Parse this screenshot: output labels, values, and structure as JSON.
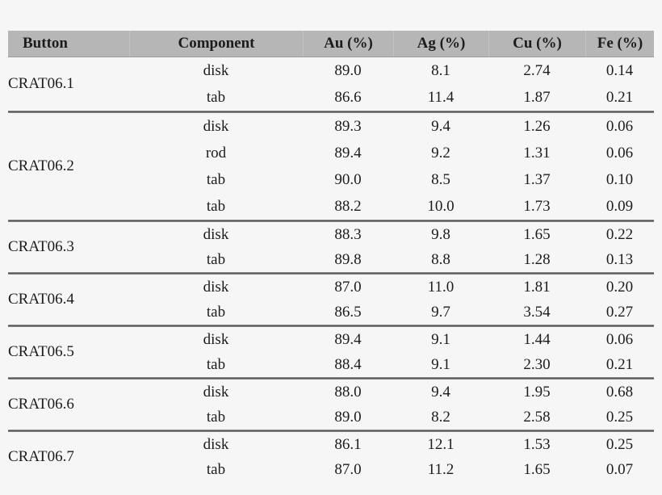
{
  "colors": {
    "page_background": "#f6f6f6",
    "header_background": "#b6b6b6",
    "divider": "#4d4d4d",
    "text": "#1c1c1c"
  },
  "table": {
    "header": {
      "labels": [
        "Button",
        "Component",
        "Au (%)",
        "Ag (%)",
        "Cu (%)",
        "Fe (%)"
      ]
    },
    "groups": [
      {
        "button": "CRAT06.1",
        "rows": [
          {
            "component": "disk",
            "au": "89.0",
            "ag": "8.1",
            "cu": "2.74",
            "fe": "0.14"
          },
          {
            "component": "tab",
            "au": "86.6",
            "ag": "11.4",
            "cu": "1.87",
            "fe": "0.21"
          }
        ]
      },
      {
        "button": "CRAT06.2",
        "rows": [
          {
            "component": "disk",
            "au": "89.3",
            "ag": "9.4",
            "cu": "1.26",
            "fe": "0.06"
          },
          {
            "component": "rod",
            "au": "89.4",
            "ag": "9.2",
            "cu": "1.31",
            "fe": "0.06"
          },
          {
            "component": "tab",
            "au": "90.0",
            "ag": "8.5",
            "cu": "1.37",
            "fe": "0.10"
          },
          {
            "component": "tab",
            "au": "88.2",
            "ag": "10.0",
            "cu": "1.73",
            "fe": "0.09"
          }
        ]
      },
      {
        "button": "CRAT06.3",
        "rows": [
          {
            "component": "disk",
            "au": "88.3",
            "ag": "9.8",
            "cu": "1.65",
            "fe": "0.22"
          },
          {
            "component": "tab",
            "au": "89.8",
            "ag": "8.8",
            "cu": "1.28",
            "fe": "0.13"
          }
        ]
      },
      {
        "button": "CRAT06.4",
        "rows": [
          {
            "component": "disk",
            "au": "87.0",
            "ag": "11.0",
            "cu": "1.81",
            "fe": "0.20"
          },
          {
            "component": "tab",
            "au": "86.5",
            "ag": "9.7",
            "cu": "3.54",
            "fe": "0.27"
          }
        ]
      },
      {
        "button": "CRAT06.5",
        "rows": [
          {
            "component": "disk",
            "au": "89.4",
            "ag": "9.1",
            "cu": "1.44",
            "fe": "0.06"
          },
          {
            "component": "tab",
            "au": "88.4",
            "ag": "9.1",
            "cu": "2.30",
            "fe": "0.21"
          }
        ]
      },
      {
        "button": "CRAT06.6",
        "rows": [
          {
            "component": "disk",
            "au": "88.0",
            "ag": "9.4",
            "cu": "1.95",
            "fe": "0.68"
          },
          {
            "component": "tab",
            "au": "89.0",
            "ag": "8.2",
            "cu": "2.58",
            "fe": "0.25"
          }
        ]
      },
      {
        "button": "CRAT06.7",
        "rows": [
          {
            "component": "disk",
            "au": "86.1",
            "ag": "12.1",
            "cu": "1.53",
            "fe": "0.25"
          },
          {
            "component": "tab",
            "au": "87.0",
            "ag": "11.2",
            "cu": "1.65",
            "fe": "0.07"
          }
        ]
      }
    ]
  },
  "chart_data": {
    "type": "table",
    "columns": [
      "Button",
      "Component",
      "Au (%)",
      "Ag (%)",
      "Cu (%)",
      "Fe (%)"
    ],
    "rows": [
      [
        "CRAT06.1",
        "disk",
        89.0,
        8.1,
        2.74,
        0.14
      ],
      [
        "CRAT06.1",
        "tab",
        86.6,
        11.4,
        1.87,
        0.21
      ],
      [
        "CRAT06.2",
        "disk",
        89.3,
        9.4,
        1.26,
        0.06
      ],
      [
        "CRAT06.2",
        "rod",
        89.4,
        9.2,
        1.31,
        0.06
      ],
      [
        "CRAT06.2",
        "tab",
        90.0,
        8.5,
        1.37,
        0.1
      ],
      [
        "CRAT06.2",
        "tab",
        88.2,
        10.0,
        1.73,
        0.09
      ],
      [
        "CRAT06.3",
        "disk",
        88.3,
        9.8,
        1.65,
        0.22
      ],
      [
        "CRAT06.3",
        "tab",
        89.8,
        8.8,
        1.28,
        0.13
      ],
      [
        "CRAT06.4",
        "disk",
        87.0,
        11.0,
        1.81,
        0.2
      ],
      [
        "CRAT06.4",
        "tab",
        86.5,
        9.7,
        3.54,
        0.27
      ],
      [
        "CRAT06.5",
        "disk",
        89.4,
        9.1,
        1.44,
        0.06
      ],
      [
        "CRAT06.5",
        "tab",
        88.4,
        9.1,
        2.3,
        0.21
      ],
      [
        "CRAT06.6",
        "disk",
        88.0,
        9.4,
        1.95,
        0.68
      ],
      [
        "CRAT06.6",
        "tab",
        89.0,
        8.2,
        2.58,
        0.25
      ],
      [
        "CRAT06.7",
        "disk",
        86.1,
        12.1,
        1.53,
        0.25
      ],
      [
        "CRAT06.7",
        "tab",
        87.0,
        11.2,
        1.65,
        0.07
      ]
    ]
  }
}
